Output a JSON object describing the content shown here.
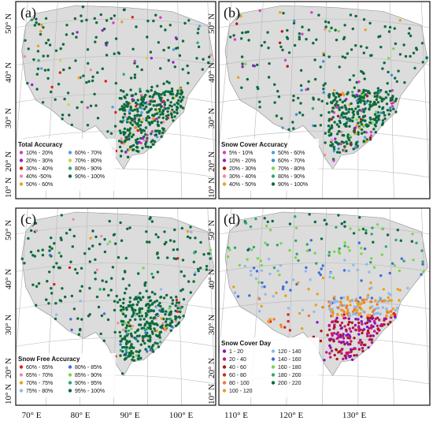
{
  "figure": {
    "panels": [
      {
        "label": "(a)",
        "legend_title": "Total Accuracy",
        "legend": [
          {
            "label": "10% - 20%",
            "color": "#d43fbf"
          },
          {
            "label": "20% - 30%",
            "color": "#9b1fd0"
          },
          {
            "label": "30% - 40%",
            "color": "#e0201b"
          },
          {
            "label": "40% -50%",
            "color": "#f08ca0"
          },
          {
            "label": "50% - 60%",
            "color": "#e8a020"
          },
          {
            "label": "60% - 70%",
            "color": "#4f9de8"
          },
          {
            "label": "70% - 80%",
            "color": "#c8d83a"
          },
          {
            "label": "80% - 90%",
            "color": "#2fa86a"
          },
          {
            "label": "90% - 100%",
            "color": "#0c6b3d"
          }
        ],
        "dominant_class": 8
      },
      {
        "label": "(b)",
        "legend_title": "Snow Cover Accuracy",
        "legend": [
          {
            "label": "5% - 10%",
            "color": "#d43fbf"
          },
          {
            "label": "10% - 20%",
            "color": "#9b1fd0"
          },
          {
            "label": "20% - 30%",
            "color": "#b01818"
          },
          {
            "label": "30% - 40%",
            "color": "#f08ca0"
          },
          {
            "label": "40% - 50%",
            "color": "#e8a020"
          },
          {
            "label": "50% - 60%",
            "color": "#4f9de8"
          },
          {
            "label": "60% - 70%",
            "color": "#3c8cd8"
          },
          {
            "label": "70% - 80%",
            "color": "#7bd64a"
          },
          {
            "label": "80% - 90%",
            "color": "#2fa86a"
          },
          {
            "label": "90% - 100%",
            "color": "#0c6b3d"
          }
        ],
        "dominant_class": 9
      },
      {
        "label": "(c)",
        "legend_title": "Snow Free Accuracy",
        "legend": [
          {
            "label": "60% - 65%",
            "color": "#e0201b"
          },
          {
            "label": "65% - 70%",
            "color": "#f08ca0"
          },
          {
            "label": "70% - 75%",
            "color": "#e8a020"
          },
          {
            "label": "75% - 80%",
            "color": "#8fb8f0"
          },
          {
            "label": "80% - 85%",
            "color": "#3c6fd8"
          },
          {
            "label": "85% - 90%",
            "color": "#7bd64a"
          },
          {
            "label": "90% - 95%",
            "color": "#2fa86a"
          },
          {
            "label": "95% - 100%",
            "color": "#0c6b3d"
          }
        ],
        "dominant_class": 7
      },
      {
        "label": "(d)",
        "legend_title": "Snow Cover Day",
        "legend": [
          {
            "label": "1 - 20",
            "color": "#8a12b8"
          },
          {
            "label": "20 - 40",
            "color": "#c0187a"
          },
          {
            "label": "40 - 60",
            "color": "#b01818"
          },
          {
            "label": "60 - 80",
            "color": "#e0201b"
          },
          {
            "label": "80 - 100",
            "color": "#f07a2a"
          },
          {
            "label": "100 - 120",
            "color": "#e8a020"
          },
          {
            "label": "120 - 140",
            "color": "#8fb8f0"
          },
          {
            "label": "140 - 160",
            "color": "#3c6fd8"
          },
          {
            "label": "160 - 180",
            "color": "#7bd64a"
          },
          {
            "label": "180 - 200",
            "color": "#2fa86a"
          },
          {
            "label": "200 - 220",
            "color": "#0c6b3d"
          }
        ],
        "dominant_class": 0
      }
    ],
    "lat_labels": [
      "50° N",
      "40° N",
      "30° N",
      "20° N",
      "10° N"
    ],
    "lon_labels": [
      "70° E",
      "80° E",
      "90° E",
      "100° E",
      "110° E",
      "120° E",
      "130° E"
    ],
    "colors": {
      "land": "#dcdcdc",
      "land_edge": "#8a8a8a",
      "grid": "#b8b8b8",
      "frame": "#111111"
    }
  }
}
